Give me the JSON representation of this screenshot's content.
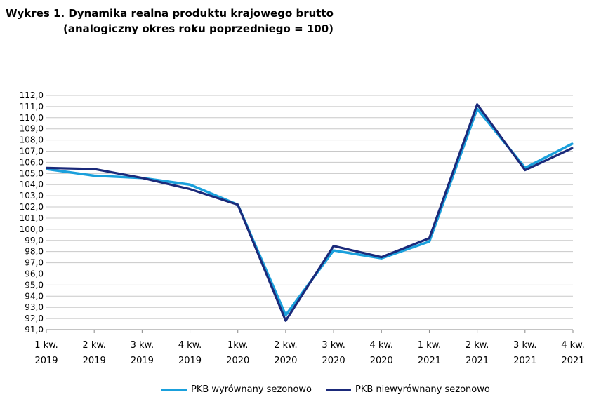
{
  "title": {
    "line1": "Wykres 1. Dynamika realna produktu krajowego brutto",
    "line2": "(analogiczny okres roku poprzedniego = 100)"
  },
  "colors": {
    "series1": "#1aa0dc",
    "series2": "#1b2a7a",
    "grid": "#c8c8c8",
    "axis": "#888888"
  },
  "chart_data": {
    "type": "line",
    "categories": [
      [
        "1 kw.",
        "2019"
      ],
      [
        "2 kw.",
        "2019"
      ],
      [
        "3 kw.",
        "2019"
      ],
      [
        "4 kw.",
        "2019"
      ],
      [
        "1kw.",
        "2020"
      ],
      [
        "2 kw.",
        "2020"
      ],
      [
        "3 kw.",
        "2020"
      ],
      [
        "4 kw.",
        "2020"
      ],
      [
        "1 kw.",
        "2021"
      ],
      [
        "2 kw.",
        "2021"
      ],
      [
        "3 kw.",
        "2021"
      ],
      [
        "4 kw.",
        "2021"
      ]
    ],
    "series": [
      {
        "name": "PKB wyrównany sezonowo",
        "values": [
          105.4,
          104.8,
          104.6,
          104.0,
          102.2,
          92.3,
          98.1,
          97.4,
          98.9,
          110.8,
          105.5,
          107.7
        ]
      },
      {
        "name": "PKB niewyrównany sezonowo",
        "values": [
          105.5,
          105.4,
          104.6,
          103.6,
          102.2,
          91.8,
          98.5,
          97.5,
          99.2,
          111.2,
          105.3,
          107.3
        ]
      }
    ],
    "ylim": [
      91.0,
      112.0
    ],
    "ytick_step": 1.0,
    "ytick_labels": [
      "112,0",
      "111,0",
      "110,0",
      "109,0",
      "108,0",
      "107,0",
      "106,0",
      "105,0",
      "104,0",
      "103,0",
      "102,0",
      "101,0",
      "100,0",
      "99,0",
      "98,0",
      "97,0",
      "96,0",
      "95,0",
      "94,0",
      "93,0",
      "92,0",
      "91,0"
    ],
    "grid": true,
    "legend_position": "bottom"
  }
}
